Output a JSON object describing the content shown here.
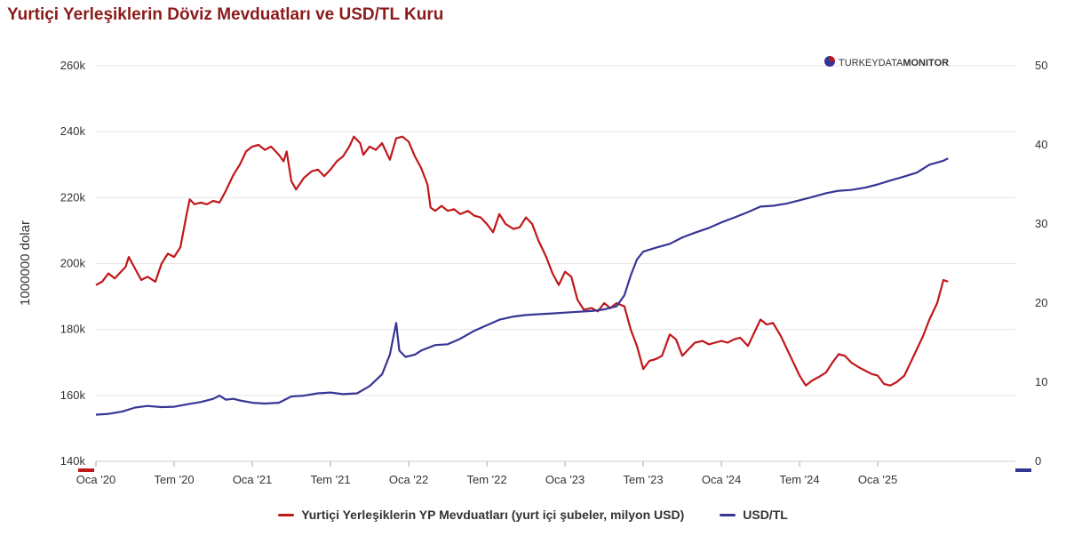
{
  "title": "Yurtiçi Yerleşiklerin Döviz Mevduatları ve USD/TL Kuru",
  "brand": {
    "part1": "TURKEYDATA",
    "part2": "MONITOR"
  },
  "colors": {
    "deposits": "#c0171c",
    "usdtl": "#373594",
    "grid": "#e6e6e6",
    "title": "#8b1a1a"
  },
  "chart_data": {
    "type": "line",
    "title": "Yurtiçi Yerleşiklerin Döviz Mevduatları ve USD/TL Kuru",
    "x_type": "time",
    "x_start": 2020.0,
    "x_end": 2025.88,
    "xticks": [
      {
        "label": "Oca '20",
        "t": 2020.0
      },
      {
        "label": "Tem '20",
        "t": 2020.5
      },
      {
        "label": "Oca '21",
        "t": 2021.0
      },
      {
        "label": "Tem '21",
        "t": 2021.5
      },
      {
        "label": "Oca '22",
        "t": 2022.0
      },
      {
        "label": "Tem '22",
        "t": 2022.5
      },
      {
        "label": "Oca '23",
        "t": 2023.0
      },
      {
        "label": "Tem '23",
        "t": 2023.5
      },
      {
        "label": "Oca '24",
        "t": 2024.0
      },
      {
        "label": "Tem '24",
        "t": 2024.5
      },
      {
        "label": "Oca '25",
        "t": 2025.0
      }
    ],
    "y_left": {
      "label": "1000000 dolar",
      "min": 140000,
      "max": 260000,
      "ticks": [
        140000,
        160000,
        180000,
        200000,
        220000,
        240000,
        260000
      ],
      "tick_labels": [
        "140k",
        "160k",
        "180k",
        "200k",
        "220k",
        "240k",
        "260k"
      ]
    },
    "y_right": {
      "label": "",
      "min": 0,
      "max": 50,
      "ticks": [
        0,
        10,
        20,
        30,
        40,
        50
      ],
      "tick_labels": [
        "0",
        "10",
        "20",
        "30",
        "40",
        "50"
      ]
    },
    "series": [
      {
        "name": "Yurtiçi Yerleşiklerin YP Mevduatları (yurt içi şubeler, milyon USD)",
        "axis": "left",
        "color": "#c0171c",
        "points": [
          [
            2020.0,
            193500
          ],
          [
            2020.04,
            194500
          ],
          [
            2020.08,
            197000
          ],
          [
            2020.12,
            195500
          ],
          [
            2020.15,
            197000
          ],
          [
            2020.19,
            199000
          ],
          [
            2020.21,
            202000
          ],
          [
            2020.25,
            198500
          ],
          [
            2020.29,
            195000
          ],
          [
            2020.33,
            196000
          ],
          [
            2020.38,
            194500
          ],
          [
            2020.42,
            200000
          ],
          [
            2020.46,
            203000
          ],
          [
            2020.5,
            202000
          ],
          [
            2020.54,
            205000
          ],
          [
            2020.58,
            215000
          ],
          [
            2020.6,
            219500
          ],
          [
            2020.63,
            218000
          ],
          [
            2020.67,
            218500
          ],
          [
            2020.71,
            218000
          ],
          [
            2020.75,
            219000
          ],
          [
            2020.79,
            218500
          ],
          [
            2020.83,
            222000
          ],
          [
            2020.88,
            227000
          ],
          [
            2020.92,
            230000
          ],
          [
            2020.96,
            234000
          ],
          [
            2021.0,
            235500
          ],
          [
            2021.04,
            236000
          ],
          [
            2021.08,
            234500
          ],
          [
            2021.12,
            235500
          ],
          [
            2021.17,
            233000
          ],
          [
            2021.2,
            231000
          ],
          [
            2021.22,
            234000
          ],
          [
            2021.25,
            225000
          ],
          [
            2021.28,
            222500
          ],
          [
            2021.33,
            226000
          ],
          [
            2021.38,
            228000
          ],
          [
            2021.42,
            228500
          ],
          [
            2021.46,
            226500
          ],
          [
            2021.5,
            228500
          ],
          [
            2021.54,
            231000
          ],
          [
            2021.58,
            232500
          ],
          [
            2021.62,
            235500
          ],
          [
            2021.65,
            238500
          ],
          [
            2021.69,
            236500
          ],
          [
            2021.71,
            233000
          ],
          [
            2021.75,
            235500
          ],
          [
            2021.79,
            234500
          ],
          [
            2021.83,
            236500
          ],
          [
            2021.88,
            231500
          ],
          [
            2021.92,
            238000
          ],
          [
            2021.96,
            238500
          ],
          [
            2022.0,
            237000
          ],
          [
            2022.04,
            232500
          ],
          [
            2022.08,
            229000
          ],
          [
            2022.12,
            224000
          ],
          [
            2022.14,
            217000
          ],
          [
            2022.17,
            216000
          ],
          [
            2022.21,
            217500
          ],
          [
            2022.25,
            216000
          ],
          [
            2022.29,
            216500
          ],
          [
            2022.33,
            215000
          ],
          [
            2022.38,
            216000
          ],
          [
            2022.42,
            214500
          ],
          [
            2022.46,
            214000
          ],
          [
            2022.5,
            212000
          ],
          [
            2022.54,
            209500
          ],
          [
            2022.58,
            215000
          ],
          [
            2022.62,
            212000
          ],
          [
            2022.67,
            210500
          ],
          [
            2022.71,
            211000
          ],
          [
            2022.75,
            214000
          ],
          [
            2022.79,
            212000
          ],
          [
            2022.83,
            207000
          ],
          [
            2022.88,
            202000
          ],
          [
            2022.92,
            197000
          ],
          [
            2022.96,
            193500
          ],
          [
            2023.0,
            197500
          ],
          [
            2023.04,
            196000
          ],
          [
            2023.08,
            189000
          ],
          [
            2023.12,
            186000
          ],
          [
            2023.17,
            186500
          ],
          [
            2023.21,
            185500
          ],
          [
            2023.25,
            188000
          ],
          [
            2023.29,
            186500
          ],
          [
            2023.33,
            188000
          ],
          [
            2023.38,
            187000
          ],
          [
            2023.42,
            180000
          ],
          [
            2023.46,
            175000
          ],
          [
            2023.5,
            168000
          ],
          [
            2023.54,
            170500
          ],
          [
            2023.58,
            171000
          ],
          [
            2023.62,
            172000
          ],
          [
            2023.67,
            178500
          ],
          [
            2023.71,
            177000
          ],
          [
            2023.75,
            172000
          ],
          [
            2023.79,
            174000
          ],
          [
            2023.83,
            176000
          ],
          [
            2023.88,
            176500
          ],
          [
            2023.92,
            175500
          ],
          [
            2023.96,
            176000
          ],
          [
            2024.0,
            176500
          ],
          [
            2024.04,
            176000
          ],
          [
            2024.08,
            177000
          ],
          [
            2024.12,
            177500
          ],
          [
            2024.17,
            175000
          ],
          [
            2024.21,
            179000
          ],
          [
            2024.25,
            183000
          ],
          [
            2024.29,
            181500
          ],
          [
            2024.33,
            182000
          ],
          [
            2024.38,
            178000
          ],
          [
            2024.42,
            174000
          ],
          [
            2024.46,
            170000
          ],
          [
            2024.5,
            166000
          ],
          [
            2024.54,
            163000
          ],
          [
            2024.58,
            164500
          ],
          [
            2024.62,
            165500
          ],
          [
            2024.67,
            167000
          ],
          [
            2024.71,
            170000
          ],
          [
            2024.75,
            172500
          ],
          [
            2024.79,
            172000
          ],
          [
            2024.83,
            170000
          ],
          [
            2024.88,
            168500
          ],
          [
            2024.92,
            167500
          ],
          [
            2024.96,
            166500
          ],
          [
            2025.0,
            166000
          ],
          [
            2025.04,
            163500
          ],
          [
            2025.08,
            163000
          ],
          [
            2025.12,
            164000
          ],
          [
            2025.17,
            166000
          ],
          [
            2025.21,
            170000
          ],
          [
            2025.25,
            174000
          ],
          [
            2025.29,
            178000
          ],
          [
            2025.33,
            183000
          ],
          [
            2025.38,
            188000
          ],
          [
            2025.42,
            195000
          ],
          [
            2025.45,
            194500
          ]
        ]
      },
      {
        "name": "USD/TL",
        "axis": "right",
        "color": "#373594",
        "points": [
          [
            2020.0,
            5.9
          ],
          [
            2020.08,
            6.0
          ],
          [
            2020.17,
            6.3
          ],
          [
            2020.25,
            6.8
          ],
          [
            2020.33,
            7.0
          ],
          [
            2020.42,
            6.85
          ],
          [
            2020.5,
            6.9
          ],
          [
            2020.58,
            7.2
          ],
          [
            2020.67,
            7.5
          ],
          [
            2020.75,
            7.9
          ],
          [
            2020.79,
            8.3
          ],
          [
            2020.83,
            7.8
          ],
          [
            2020.88,
            7.9
          ],
          [
            2020.92,
            7.7
          ],
          [
            2021.0,
            7.4
          ],
          [
            2021.08,
            7.3
          ],
          [
            2021.17,
            7.4
          ],
          [
            2021.25,
            8.2
          ],
          [
            2021.33,
            8.3
          ],
          [
            2021.42,
            8.6
          ],
          [
            2021.5,
            8.7
          ],
          [
            2021.58,
            8.5
          ],
          [
            2021.67,
            8.6
          ],
          [
            2021.75,
            9.5
          ],
          [
            2021.83,
            11.0
          ],
          [
            2021.88,
            13.5
          ],
          [
            2021.92,
            17.5
          ],
          [
            2021.94,
            14.0
          ],
          [
            2021.98,
            13.2
          ],
          [
            2022.04,
            13.5
          ],
          [
            2022.08,
            14.0
          ],
          [
            2022.17,
            14.7
          ],
          [
            2022.25,
            14.8
          ],
          [
            2022.33,
            15.5
          ],
          [
            2022.42,
            16.5
          ],
          [
            2022.5,
            17.2
          ],
          [
            2022.58,
            17.9
          ],
          [
            2022.67,
            18.3
          ],
          [
            2022.75,
            18.5
          ],
          [
            2022.83,
            18.6
          ],
          [
            2022.92,
            18.7
          ],
          [
            2023.0,
            18.8
          ],
          [
            2023.08,
            18.9
          ],
          [
            2023.17,
            19.0
          ],
          [
            2023.25,
            19.2
          ],
          [
            2023.33,
            19.6
          ],
          [
            2023.38,
            21.0
          ],
          [
            2023.42,
            23.5
          ],
          [
            2023.46,
            25.5
          ],
          [
            2023.5,
            26.5
          ],
          [
            2023.58,
            27.0
          ],
          [
            2023.67,
            27.5
          ],
          [
            2023.75,
            28.3
          ],
          [
            2023.83,
            28.9
          ],
          [
            2023.92,
            29.5
          ],
          [
            2024.0,
            30.2
          ],
          [
            2024.08,
            30.8
          ],
          [
            2024.17,
            31.5
          ],
          [
            2024.25,
            32.2
          ],
          [
            2024.33,
            32.3
          ],
          [
            2024.42,
            32.6
          ],
          [
            2024.5,
            33.0
          ],
          [
            2024.58,
            33.4
          ],
          [
            2024.67,
            33.9
          ],
          [
            2024.75,
            34.2
          ],
          [
            2024.83,
            34.3
          ],
          [
            2024.92,
            34.6
          ],
          [
            2025.0,
            35.0
          ],
          [
            2025.08,
            35.5
          ],
          [
            2025.17,
            36.0
          ],
          [
            2025.25,
            36.5
          ],
          [
            2025.33,
            37.5
          ],
          [
            2025.42,
            38.0
          ],
          [
            2025.45,
            38.3
          ]
        ]
      }
    ],
    "legend_position": "bottom-center",
    "grid": true
  }
}
